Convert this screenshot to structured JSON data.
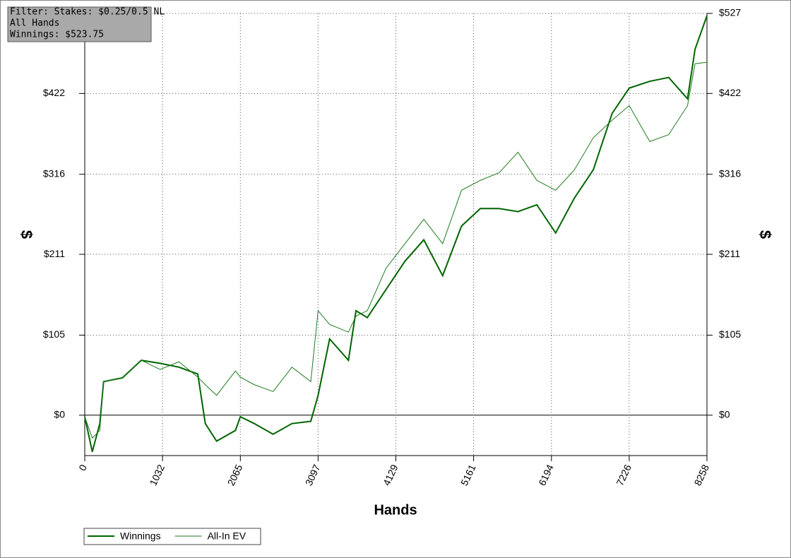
{
  "chart_data": {
    "type": "line",
    "info_box": [
      "Filter: Stakes: $0.25/0.5 NL",
      "All Hands",
      "Winnings: $523.75"
    ],
    "y_label": "$",
    "x_label": "Hands",
    "x": [
      0,
      100,
      200,
      250,
      500,
      750,
      1000,
      1250,
      1500,
      1600,
      1750,
      2000,
      2065,
      2250,
      2500,
      2750,
      3000,
      3097,
      3250,
      3500,
      3600,
      3750,
      4000,
      4250,
      4500,
      4750,
      5000,
      5250,
      5500,
      5750,
      6000,
      6250,
      6500,
      6750,
      7000,
      7226,
      7500,
      7750,
      8000,
      8100,
      8258
    ],
    "series": [
      {
        "name": "Winnings",
        "color": "#006400",
        "width": 2,
        "values": [
          -2,
          -48,
          -11,
          44,
          49,
          72,
          68,
          63,
          54,
          -11,
          -34,
          -20,
          -2,
          -11,
          -25,
          -11,
          -8,
          26,
          100,
          72,
          137,
          128,
          165,
          202,
          230,
          183,
          248,
          271,
          271,
          267,
          276,
          239,
          285,
          322,
          396,
          429,
          438,
          443,
          415,
          480,
          524
        ]
      },
      {
        "name": "All-In EV",
        "color": "#1f7a1f",
        "width": 1,
        "values": [
          -2,
          -30,
          -20,
          44,
          49,
          72,
          60,
          70,
          50,
          40,
          26,
          58,
          50,
          40,
          31,
          63,
          44,
          137,
          119,
          109,
          130,
          137,
          193,
          225,
          257,
          225,
          295,
          308,
          318,
          345,
          308,
          295,
          322,
          364,
          387,
          406,
          359,
          368,
          406,
          461,
          463
        ]
      }
    ],
    "xlim": [
      0,
      8258
    ],
    "xticks": [
      0,
      1032,
      2065,
      3097,
      4129,
      5161,
      6194,
      7226,
      8258
    ],
    "ylim": [
      -53,
      527
    ],
    "yticks": [
      {
        "value": 0,
        "label": "$0"
      },
      {
        "value": 105,
        "label": "$105"
      },
      {
        "value": 211,
        "label": "$211"
      },
      {
        "value": 316,
        "label": "$316"
      },
      {
        "value": 422,
        "label": "$422"
      },
      {
        "value": 527,
        "label": "$527"
      }
    ],
    "grid": true,
    "legend": "bottom-left"
  }
}
